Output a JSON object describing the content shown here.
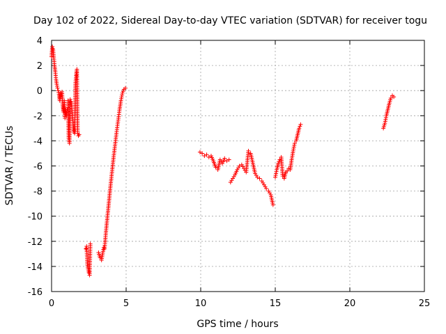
{
  "chart_data": {
    "type": "scatter",
    "title": "Day 102 of 2022, Sidereal Day-to-day VTEC variation (SDTVAR) for receiver togu",
    "xlabel": "GPS time / hours",
    "ylabel": "SDTVAR / TECUs",
    "xlim": [
      0,
      25
    ],
    "ylim": [
      -16,
      4
    ],
    "xticks": [
      0,
      5,
      10,
      15,
      20,
      25
    ],
    "yticks": [
      -16,
      -14,
      -12,
      -10,
      -8,
      -6,
      -4,
      -2,
      0,
      2,
      4
    ],
    "xtick_labels": [
      "0",
      "5",
      "10",
      "15",
      "20",
      "25"
    ],
    "ytick_labels": [
      "-16",
      "-14",
      "-12",
      "-10",
      "-8",
      "-6",
      "-4",
      "-2",
      "0",
      "2",
      "4"
    ],
    "grid": true,
    "marker": "+",
    "color": "#ff0000",
    "segments": [
      {
        "x": [
          0.0,
          0.05,
          0.1,
          0.15,
          0.2,
          0.25,
          0.3,
          0.35,
          0.4,
          0.45,
          0.5,
          0.55,
          0.6,
          0.65,
          0.7,
          0.75,
          0.8,
          0.85,
          0.9,
          0.95,
          1.0,
          1.05
        ],
        "y": [
          2.7,
          3.5,
          3.3,
          2.6,
          2.0,
          1.5,
          0.9,
          0.5,
          0.2,
          0.0,
          -0.3,
          -0.8,
          -0.2,
          -0.5,
          -0.1,
          -1.2,
          -1.7,
          -0.8,
          -2.2,
          -1.5,
          -2.0,
          -1.5
        ]
      },
      {
        "x": [
          1.1,
          1.15,
          1.2,
          1.25,
          1.3,
          1.35,
          1.4,
          1.45,
          1.5,
          1.55,
          1.6,
          1.65,
          1.7,
          1.75,
          1.8,
          1.85
        ],
        "y": [
          -0.8,
          -3.8,
          -4.2,
          -0.7,
          -0.9,
          -1.3,
          -2.0,
          -2.8,
          -3.3,
          -3.4,
          0.5,
          1.2,
          1.7,
          -3.4,
          -3.6,
          -3.5
        ]
      },
      {
        "x": [
          2.3,
          2.35,
          2.4,
          2.45,
          2.5,
          2.55,
          2.6
        ],
        "y": [
          -12.6,
          -12.4,
          -13.8,
          -14.2,
          -14.5,
          -14.7,
          -12.2
        ]
      },
      {
        "x": [
          3.15,
          3.25,
          3.35,
          3.45,
          3.5,
          3.55,
          3.65,
          3.75,
          3.85,
          3.95,
          4.05,
          4.15,
          4.25,
          4.35,
          4.45,
          4.55,
          4.65,
          4.75,
          4.85,
          4.95
        ],
        "y": [
          -12.9,
          -13.3,
          -13.5,
          -12.8,
          -12.5,
          -12.6,
          -11.2,
          -10.0,
          -8.8,
          -7.6,
          -6.5,
          -5.4,
          -4.4,
          -3.4,
          -2.5,
          -1.6,
          -0.8,
          -0.2,
          0.1,
          0.2
        ]
      },
      {
        "x": [
          9.95,
          10.1,
          10.25,
          10.4,
          10.55,
          10.7,
          10.85,
          11.0,
          11.15,
          11.3,
          11.45,
          11.6,
          11.75,
          11.9
        ],
        "y": [
          -4.9,
          -5.0,
          -5.2,
          -5.1,
          -5.3,
          -5.2,
          -5.6,
          -6.1,
          -6.3,
          -5.5,
          -5.8,
          -5.4,
          -5.6,
          -5.5
        ]
      },
      {
        "x": [
          12.0,
          12.15,
          12.3,
          12.45,
          12.6,
          12.75,
          12.9,
          13.05,
          13.2,
          13.35,
          13.5,
          13.65,
          13.8,
          13.95,
          14.1,
          14.25,
          14.4,
          14.55,
          14.7,
          14.85
        ],
        "y": [
          -7.3,
          -7.0,
          -6.7,
          -6.3,
          -6.0,
          -5.9,
          -6.2,
          -6.5,
          -4.8,
          -5.0,
          -5.8,
          -6.6,
          -6.9,
          -7.0,
          -7.2,
          -7.5,
          -7.8,
          -8.0,
          -8.3,
          -9.1
        ]
      },
      {
        "x": [
          15.0,
          15.1,
          15.2,
          15.3,
          15.4,
          15.5,
          15.6,
          15.7,
          15.8,
          15.9,
          16.0,
          16.1,
          16.2,
          16.3,
          16.4,
          16.5,
          16.6,
          16.7
        ],
        "y": [
          -6.9,
          -6.3,
          -5.8,
          -5.5,
          -5.3,
          -6.8,
          -7.0,
          -6.5,
          -6.4,
          -6.2,
          -6.3,
          -5.5,
          -4.8,
          -4.2,
          -4.0,
          -3.5,
          -3.0,
          -2.7
        ]
      },
      {
        "x": [
          22.25,
          22.35,
          22.45,
          22.55,
          22.65,
          22.75,
          22.85,
          22.95
        ],
        "y": [
          -3.0,
          -2.6,
          -2.0,
          -1.5,
          -1.0,
          -0.6,
          -0.4,
          -0.5
        ]
      }
    ]
  }
}
